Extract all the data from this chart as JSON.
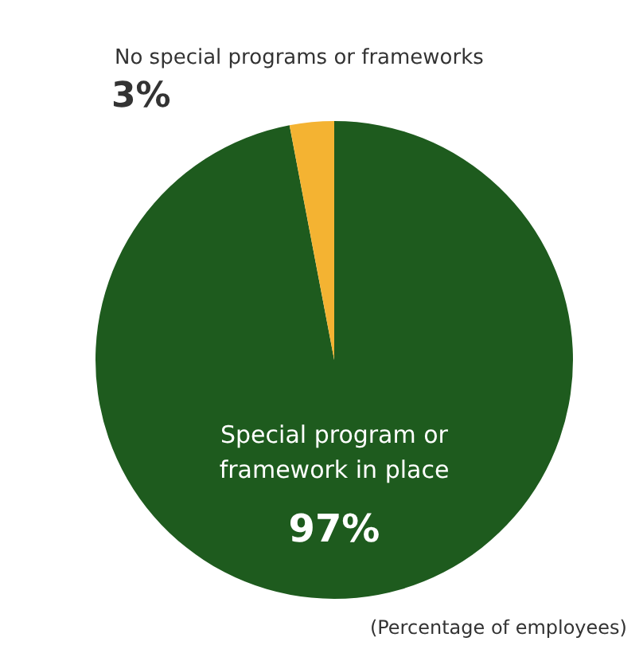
{
  "chart_data": {
    "type": "pie",
    "categories": [
      "Special program or framework in place",
      "No special programs or frameworks"
    ],
    "values": [
      97,
      3
    ],
    "colors": [
      "#1e5b1e",
      "#f4b332"
    ],
    "value_labels": [
      "97%",
      "3%"
    ],
    "annotations": [
      "(Percentage of employees)"
    ],
    "legend": false
  }
}
